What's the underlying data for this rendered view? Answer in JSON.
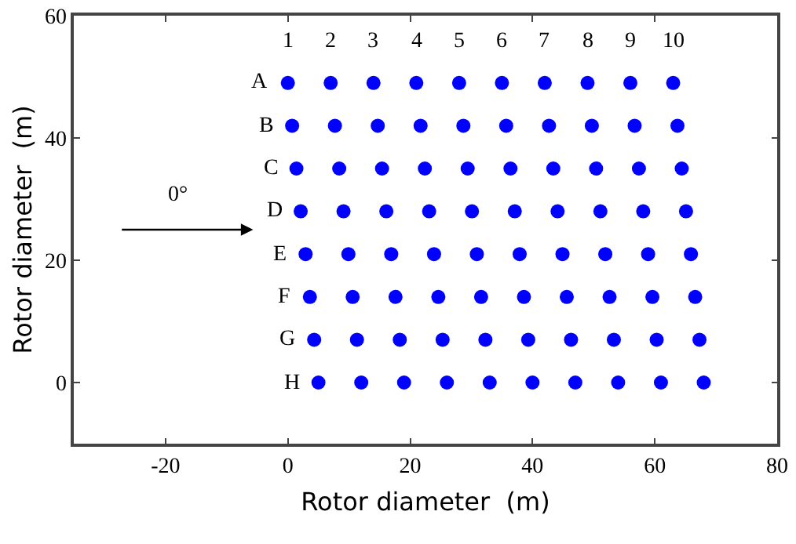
{
  "chart_data": {
    "type": "scatter",
    "xlabel": "Rotor diameter  (m)",
    "ylabel": "Rotor diameter  (m)",
    "x": [
      0,
      7,
      14,
      21,
      28,
      35,
      42,
      49,
      56,
      63,
      0.7,
      7.7,
      14.7,
      21.7,
      28.7,
      35.7,
      42.7,
      49.7,
      56.7,
      63.7,
      1.4,
      8.4,
      15.4,
      22.4,
      29.4,
      36.4,
      43.4,
      50.4,
      57.4,
      64.4,
      2.1,
      9.1,
      16.1,
      23.1,
      30.1,
      37.1,
      44.1,
      51.1,
      58.1,
      65.1,
      2.9,
      9.9,
      16.9,
      23.9,
      30.9,
      37.9,
      44.9,
      51.9,
      58.9,
      65.9,
      3.6,
      10.6,
      17.6,
      24.6,
      31.6,
      38.6,
      45.6,
      52.6,
      59.6,
      66.6,
      4.3,
      11.3,
      18.3,
      25.3,
      32.3,
      39.3,
      46.3,
      53.3,
      60.3,
      67.3,
      5,
      12,
      19,
      26,
      33,
      40,
      47,
      54,
      61,
      68
    ],
    "series": [
      {
        "color": "#0000ff",
        "values": [
          49,
          49,
          49,
          49,
          49,
          49,
          49,
          49,
          49,
          49,
          42,
          42,
          42,
          42,
          42,
          42,
          42,
          42,
          42,
          42,
          35,
          35,
          35,
          35,
          35,
          35,
          35,
          35,
          35,
          35,
          28,
          28,
          28,
          28,
          28,
          28,
          28,
          28,
          28,
          28,
          21,
          21,
          21,
          21,
          21,
          21,
          21,
          21,
          21,
          21,
          14,
          14,
          14,
          14,
          14,
          14,
          14,
          14,
          14,
          14,
          7,
          7,
          7,
          7,
          7,
          7,
          7,
          7,
          7,
          7,
          0,
          0,
          0,
          0,
          0,
          0,
          0,
          0,
          0,
          0
        ]
      }
    ],
    "xlim": [
      -35,
      80
    ],
    "xticks": [
      -20,
      0,
      20,
      40,
      60,
      80
    ],
    "ylim": [
      -10,
      60
    ],
    "yticks": [
      0,
      20,
      40,
      60
    ],
    "grid": false,
    "legend": false,
    "marker": "circle",
    "annotations": [
      "1",
      "2",
      "3",
      "4",
      "5",
      "6",
      "7",
      "8",
      "9",
      "10",
      "A",
      "B",
      "C",
      "D",
      "E",
      "F",
      "G",
      "H",
      "0°"
    ]
  }
}
